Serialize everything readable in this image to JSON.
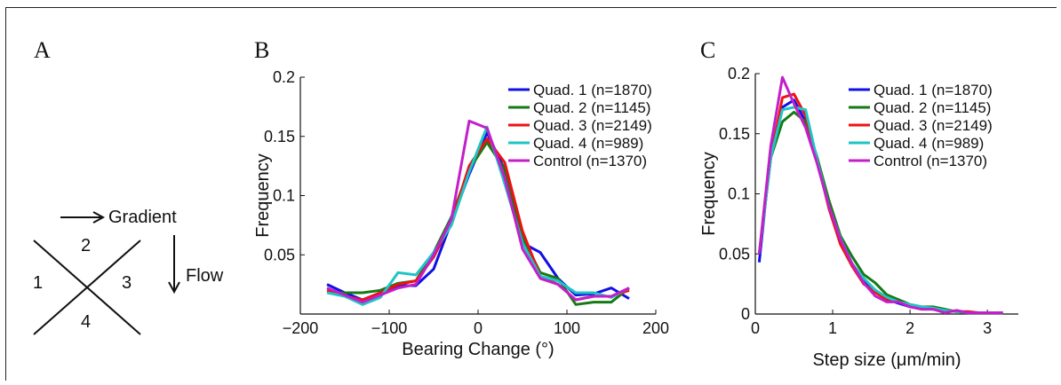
{
  "panel_letters": {
    "a": "A",
    "b": "B",
    "c": "C"
  },
  "diagram": {
    "gradient_label": "Gradient",
    "flow_label": "Flow",
    "quadrants": [
      "1",
      "2",
      "3",
      "4"
    ]
  },
  "colors": {
    "Quad. 1": "#1010e6",
    "Quad. 2": "#157a15",
    "Quad. 3": "#ee1111",
    "Quad. 4": "#1fc4c4",
    "Control": "#c21fc9"
  },
  "chart_data": [
    {
      "type": "line",
      "panel": "B",
      "xlabel": "Bearing Change (°)",
      "ylabel": "Frequency",
      "xlim": [
        -200,
        200
      ],
      "ylim": [
        0,
        0.2
      ],
      "x_ticks": [
        "−200",
        "−100",
        "0",
        "100",
        "200"
      ],
      "y_ticks": [
        "0.05",
        "0.1",
        "0.15",
        "0.2"
      ],
      "legend_position": "top-right",
      "x": [
        -170,
        -150,
        -130,
        -110,
        -90,
        -70,
        -50,
        -30,
        -10,
        10,
        30,
        50,
        70,
        90,
        110,
        130,
        150,
        170
      ],
      "series": [
        {
          "name": "Quad. 1 (n=1870)",
          "values": [
            0.025,
            0.018,
            0.012,
            0.018,
            0.024,
            0.024,
            0.038,
            0.078,
            0.118,
            0.153,
            0.122,
            0.06,
            0.052,
            0.03,
            0.016,
            0.017,
            0.022,
            0.013
          ]
        },
        {
          "name": "Quad. 2 (n=1145)",
          "values": [
            0.018,
            0.018,
            0.018,
            0.02,
            0.026,
            0.028,
            0.052,
            0.082,
            0.122,
            0.145,
            0.122,
            0.065,
            0.035,
            0.03,
            0.008,
            0.01,
            0.01,
            0.022
          ]
        },
        {
          "name": "Quad. 3 (n=2149)",
          "values": [
            0.02,
            0.015,
            0.012,
            0.018,
            0.025,
            0.028,
            0.048,
            0.078,
            0.125,
            0.148,
            0.128,
            0.07,
            0.032,
            0.025,
            0.012,
            0.015,
            0.015,
            0.02
          ]
        },
        {
          "name": "Quad. 4 (n=989)",
          "values": [
            0.018,
            0.015,
            0.008,
            0.014,
            0.035,
            0.033,
            0.052,
            0.075,
            0.12,
            0.158,
            0.11,
            0.06,
            0.032,
            0.028,
            0.018,
            0.018,
            0.014,
            0.022
          ]
        },
        {
          "name": "Control (n=1370)",
          "values": [
            0.022,
            0.016,
            0.01,
            0.016,
            0.022,
            0.025,
            0.05,
            0.08,
            0.163,
            0.157,
            0.115,
            0.055,
            0.03,
            0.025,
            0.012,
            0.015,
            0.015,
            0.022
          ]
        }
      ]
    },
    {
      "type": "line",
      "panel": "C",
      "xlabel": "Step size (μm/min)",
      "ylabel": "Frequency",
      "xlim": [
        0,
        3.4
      ],
      "ylim": [
        0,
        0.2
      ],
      "x_ticks": [
        "0",
        "1",
        "2",
        "3"
      ],
      "y_ticks": [
        "0",
        "0.05",
        "0.1",
        "0.15",
        "0.2"
      ],
      "legend_position": "top-right",
      "x": [
        0.05,
        0.2,
        0.35,
        0.5,
        0.65,
        0.8,
        0.95,
        1.1,
        1.25,
        1.4,
        1.55,
        1.7,
        1.85,
        2.0,
        2.15,
        2.3,
        2.45,
        2.6,
        2.75,
        2.9,
        3.05,
        3.2
      ],
      "series": [
        {
          "name": "Quad. 1 (n=1870)",
          "values": [
            0.043,
            0.135,
            0.172,
            0.178,
            0.16,
            0.13,
            0.09,
            0.06,
            0.042,
            0.028,
            0.02,
            0.012,
            0.009,
            0.006,
            0.005,
            0.004,
            0.003,
            0.002,
            0.001,
            0.001,
            0.001,
            0.001
          ]
        },
        {
          "name": "Quad. 2 (n=1145)",
          "values": [
            0.05,
            0.13,
            0.16,
            0.168,
            0.16,
            0.13,
            0.095,
            0.065,
            0.048,
            0.033,
            0.026,
            0.016,
            0.012,
            0.008,
            0.006,
            0.006,
            0.004,
            0.002,
            0.001,
            0.001,
            0.001,
            0.001
          ]
        },
        {
          "name": "Quad. 3 (n=2149)",
          "values": [
            0.05,
            0.13,
            0.18,
            0.183,
            0.165,
            0.128,
            0.088,
            0.058,
            0.04,
            0.025,
            0.018,
            0.012,
            0.01,
            0.007,
            0.005,
            0.004,
            0.003,
            0.002,
            0.002,
            0.001,
            0.001,
            0.001
          ]
        },
        {
          "name": "Quad. 4 (n=989)",
          "values": [
            0.05,
            0.13,
            0.17,
            0.172,
            0.17,
            0.128,
            0.09,
            0.063,
            0.042,
            0.03,
            0.02,
            0.014,
            0.01,
            0.008,
            0.006,
            0.005,
            0.003,
            0.002,
            0.001,
            0.001,
            0.001,
            0.001
          ]
        },
        {
          "name": "Control (n=1370)",
          "values": [
            0.05,
            0.14,
            0.197,
            0.175,
            0.155,
            0.125,
            0.09,
            0.062,
            0.042,
            0.026,
            0.015,
            0.01,
            0.01,
            0.006,
            0.004,
            0.004,
            0.001,
            0.003,
            0.001,
            0.001,
            0.001,
            0.001
          ]
        }
      ]
    }
  ]
}
